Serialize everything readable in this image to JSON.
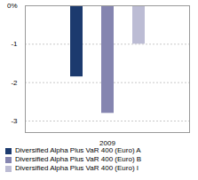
{
  "chart_data": {
    "type": "bar",
    "categories": [
      "2009"
    ],
    "series": [
      {
        "name": "Diversified Alpha Plus VaR 400 (Euro) A",
        "color": "#1c3a6e",
        "values": [
          -1.85
        ]
      },
      {
        "name": "Diversified Alpha Plus VaR 400 (Euro) B",
        "color": "#8585b0",
        "values": [
          -2.8
        ]
      },
      {
        "name": "Diversified Alpha Plus VaR 400 (Euro) I",
        "color": "#bcbcd4",
        "values": [
          -1.0
        ]
      }
    ],
    "ylim": [
      -3.3,
      0
    ],
    "yticks": [
      {
        "value": 0,
        "label": "0%"
      },
      -1,
      -2,
      -3
    ],
    "grid": true,
    "legend": "bottom"
  }
}
